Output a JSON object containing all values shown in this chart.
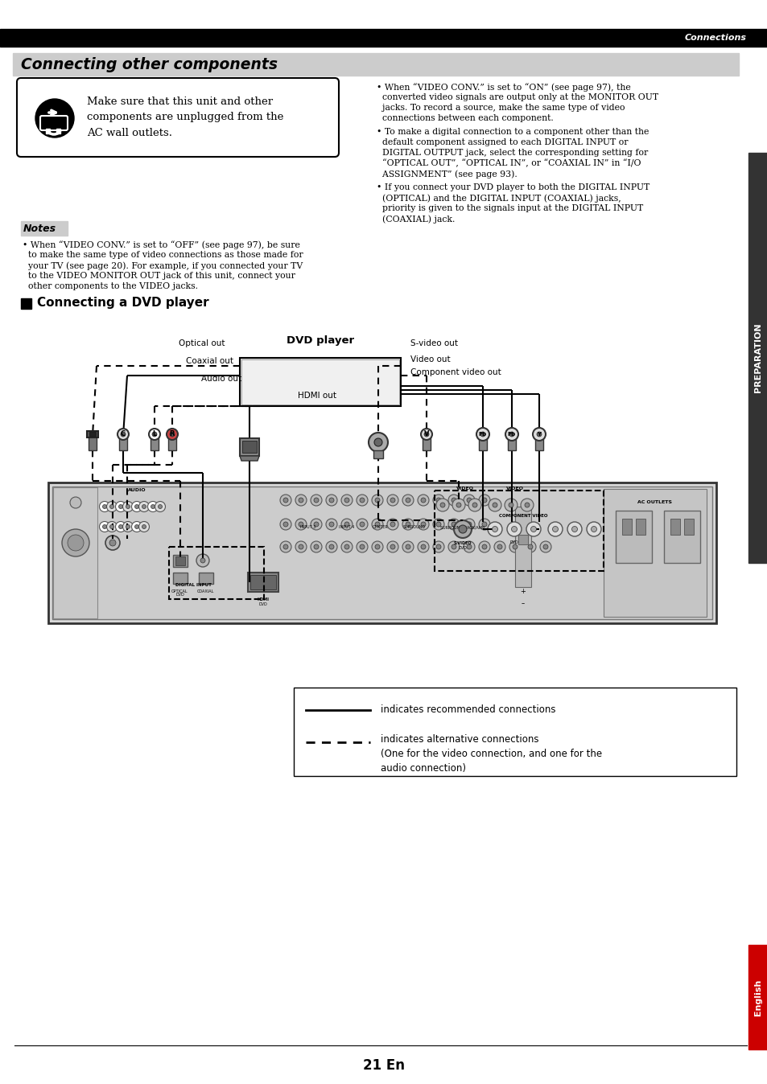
{
  "page_title": "Connecting other components",
  "header_label": "Connections",
  "section_title": "Connecting a DVD player",
  "warning_text": "Make sure that this unit and other\ncomponents are unplugged from the\nAC wall outlets.",
  "notes_label": "Notes",
  "note1_line1": "• When “VIDEO CONV.” is set to “OFF” (see page 97), be sure",
  "note1_line2": "  to make the same type of video connections as those made for",
  "note1_line3": "  your TV (see page 20). For example, if you connected your TV",
  "note1_line4": "  to the VIDEO MONITOR OUT jack of this unit, connect your",
  "note1_line5": "  other components to the VIDEO jacks.",
  "b1_line1": "• When “VIDEO CONV.” is set to “ON” (see page 97), the",
  "b1_line2": "  converted video signals are output only at the MONITOR OUT",
  "b1_line3": "  jacks. To record a source, make the same type of video",
  "b1_line4": "  connections between each component.",
  "b2_line1": "• To make a digital connection to a component other than the",
  "b2_line2": "  default component assigned to each DIGITAL INPUT or",
  "b2_line3": "  DIGITAL OUTPUT jack, select the corresponding setting for",
  "b2_line4": "  “OPTICAL OUT”, “OPTICAL IN”, or “COAXIAL IN” in “I/O",
  "b2_line5": "  ASSIGNMENT” (see page 93).",
  "b3_line1": "• If you connect your DVD player to both the DIGITAL INPUT",
  "b3_line2": "  (OPTICAL) and the DIGITAL INPUT (COAXIAL) jacks,",
  "b3_line3": "  priority is given to the signals input at the DIGITAL INPUT",
  "b3_line4": "  (COAXIAL) jack.",
  "dvd_label": "DVD player",
  "label_opt": "Optical out",
  "label_coa": "Coaxial out",
  "label_aud": "Audio out",
  "label_hdmi": "HDMI out",
  "label_svid": "S-video out",
  "label_vid": "Video out",
  "label_comp": "Component video out",
  "legend_solid": "indicates recommended connections",
  "legend_dashed": "indicates alternative connections\n(One for the video connection, and one for the\naudio connection)",
  "page_number": "21 En",
  "sidebar_prep": "PREPARATION",
  "sidebar_eng": "English",
  "bg_color": "#ffffff",
  "header_bg": "#000000",
  "title_bg": "#cccccc",
  "notes_bg": "#cccccc",
  "sidebar_color": "#333333",
  "sidebar_eng_color": "#cc0000"
}
